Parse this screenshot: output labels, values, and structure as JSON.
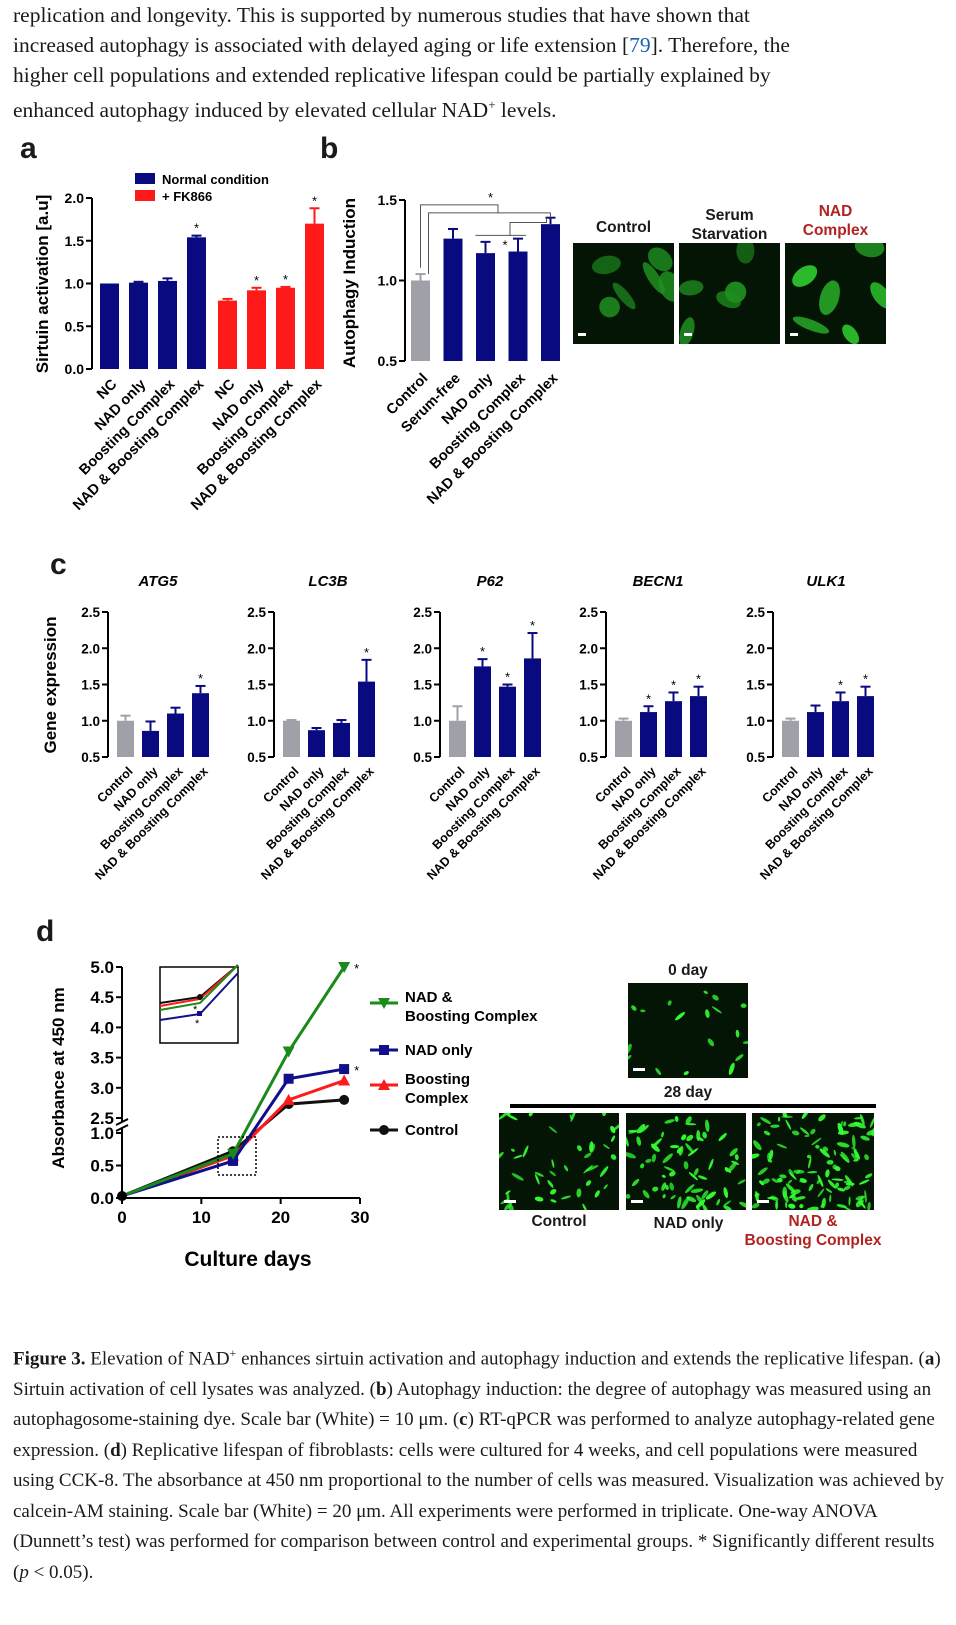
{
  "intro": {
    "line1": "replication and longevity. This is supported by numerous studies that have shown that",
    "line2a": "increased autophagy is associated with delayed aging or life extension [",
    "line2ref": "79",
    "line2b": "]. Therefore, the",
    "line3": "higher cell populations and extended replicative lifespan could be partially explained by",
    "line4a": "enhanced autophagy induced by elevated cellular NAD",
    "line4sup": "+",
    "line4b": " levels."
  },
  "panels": {
    "a": "a",
    "b": "b",
    "c": "c",
    "d": "d"
  },
  "panel_b_images": {
    "labels": [
      "Control",
      "Serum\nStarvation",
      "NAD\nComplex"
    ],
    "label_colors": [
      "#111111",
      "#111111",
      "#b22222"
    ]
  },
  "panel_d_images": {
    "day0": "0 day",
    "day28": "28 day",
    "labels": [
      "Control",
      "NAD only",
      "NAD &\nBoosting Complex"
    ],
    "label_colors": [
      "#111111",
      "#111111",
      "#b22222"
    ]
  },
  "chart_data": [
    {
      "panel": "a",
      "type": "bar",
      "ylabel": "Sirtuin activation [a.u]",
      "ylim": [
        0,
        2.0
      ],
      "yticks": [
        "0.0",
        "0.5",
        "1.0",
        "1.5",
        "2.0"
      ],
      "legend": [
        {
          "name": "Normal condition",
          "color": "#0a0a80"
        },
        {
          "name": "+ FK866",
          "color": "#ff1a1a"
        }
      ],
      "series": [
        {
          "name": "Normal condition",
          "color": "#0a0a80",
          "categories": [
            "NC",
            "NAD only",
            "Boosting Complex",
            "NAD & Boosting Complex"
          ],
          "values": [
            1.0,
            1.01,
            1.03,
            1.54
          ],
          "errors": [
            0.0,
            0.01,
            0.03,
            0.02
          ],
          "significant": [
            false,
            false,
            false,
            true
          ]
        },
        {
          "name": "+ FK866",
          "color": "#ff1a1a",
          "categories": [
            "NC",
            "NAD only",
            "Boosting Complex",
            "NAD & Boosting Complex"
          ],
          "values": [
            0.8,
            0.92,
            0.95,
            1.7
          ],
          "errors": [
            0.02,
            0.03,
            0.01,
            0.18
          ],
          "significant": [
            false,
            true,
            true,
            true
          ]
        }
      ]
    },
    {
      "panel": "b",
      "type": "bar",
      "ylabel": "Autophagy Induction",
      "ylim": [
        0.5,
        1.5
      ],
      "yticks": [
        "0.5",
        "1.0",
        "1.5"
      ],
      "categories": [
        "Control",
        "Serum-free",
        "NAD only",
        "Boosting Complex",
        "NAD & Boosting Complex"
      ],
      "values": [
        1.0,
        1.26,
        1.17,
        1.18,
        1.35
      ],
      "errors": [
        0.04,
        0.06,
        0.07,
        0.08,
        0.04
      ],
      "colors": [
        "#a0a0a8",
        "#0a0a80",
        "#0a0a80",
        "#0a0a80",
        "#0a0a80"
      ],
      "significance_star": "*"
    },
    {
      "panel": "c",
      "type": "bar",
      "ylabel": "Gene expression",
      "ylim": [
        0.5,
        2.5
      ],
      "yticks": [
        "0.5",
        "1.0",
        "1.5",
        "2.0",
        "2.5"
      ],
      "categories": [
        "Control",
        "NAD only",
        "Boosting Complex",
        "NAD & Boosting Complex"
      ],
      "colors": [
        "#a0a0a8",
        "#0a0a80",
        "#0a0a80",
        "#0a0a80"
      ],
      "genes": [
        {
          "name": "ATG5",
          "values": [
            1.0,
            0.86,
            1.1,
            1.38
          ],
          "errors": [
            0.07,
            0.13,
            0.08,
            0.1
          ],
          "significant": [
            false,
            false,
            false,
            true
          ]
        },
        {
          "name": "LC3B",
          "values": [
            1.0,
            0.87,
            0.97,
            1.54
          ],
          "errors": [
            0.01,
            0.03,
            0.04,
            0.3
          ],
          "significant": [
            false,
            false,
            false,
            true
          ]
        },
        {
          "name": "P62",
          "values": [
            1.0,
            1.75,
            1.47,
            1.86
          ],
          "errors": [
            0.2,
            0.1,
            0.03,
            0.35
          ],
          "significant": [
            false,
            true,
            true,
            true
          ]
        },
        {
          "name": "BECN1",
          "values": [
            1.0,
            1.12,
            1.27,
            1.34
          ],
          "errors": [
            0.03,
            0.08,
            0.12,
            0.13
          ],
          "significant": [
            false,
            true,
            true,
            true
          ]
        },
        {
          "name": "ULK1",
          "values": [
            1.0,
            1.12,
            1.27,
            1.34
          ],
          "errors": [
            0.03,
            0.09,
            0.12,
            0.13
          ],
          "significant": [
            false,
            false,
            true,
            true
          ]
        }
      ]
    },
    {
      "panel": "d",
      "type": "line",
      "xlabel": "Culture days",
      "ylabel": "Absorbance at 450 nm",
      "xticks": [
        "0",
        "10",
        "20",
        "30"
      ],
      "yticks_lower": [
        "0.0",
        "0.5",
        "1.0"
      ],
      "yticks_upper": [
        "2.5",
        "3.0",
        "3.5",
        "4.0",
        "4.5",
        "5.0"
      ],
      "x": [
        0,
        14,
        21,
        28
      ],
      "series": [
        {
          "name": "NAD & Boosting Complex",
          "color": "#1a8a1a",
          "marker": "triangle-down",
          "values": [
            0.03,
            0.68,
            3.6,
            5.0
          ],
          "significant_last": true
        },
        {
          "name": "NAD only",
          "color": "#10108a",
          "marker": "square",
          "values": [
            0.03,
            0.57,
            3.15,
            3.31
          ],
          "significant_last": true
        },
        {
          "name": "Boosting Complex",
          "color": "#ff1a1a",
          "marker": "triangle-up",
          "values": [
            0.03,
            0.65,
            2.8,
            3.12
          ],
          "significant_last": false
        },
        {
          "name": "Control",
          "color": "#111111",
          "marker": "circle",
          "values": [
            0.03,
            0.72,
            2.73,
            2.8
          ],
          "significant_last": false
        }
      ],
      "legend_labels": [
        "NAD &\nBoosting Complex",
        "NAD only",
        "Boosting\nComplex",
        "Control"
      ]
    }
  ],
  "caption": {
    "label": "Figure 3.",
    "text1": " Elevation of NAD",
    "sup": "+",
    "text2": " enhances sirtuin activation and autophagy induction and extends the replicative lifespan. (",
    "a": "a",
    "ta": ") Sirtuin activation of cell lysates was analyzed. (",
    "b": "b",
    "tb": ") Autophagy induction: the degree of autophagy was measured using an autophagosome-staining dye. Scale bar (White) = 10 μm. (",
    "c": "c",
    "tc": ") RT-qPCR was performed to analyze autophagy-related gene expression. (",
    "d": "d",
    "td": ") Replicative lifespan of fibroblasts: cells were cultured for 4 weeks, and cell populations were measured using CCK-8. The absorbance at 450 nm proportional to the number of cells was measured. Visualization was achieved by calcein-AM staining. Scale bar (White) = 20 μm. All experiments were performed in triplicate. One-way ANOVA (Dunnett’s test) was performed for comparison between control and experimental groups. * Significantly different results (",
    "p": "p",
    "tp": " < 0.05)."
  }
}
